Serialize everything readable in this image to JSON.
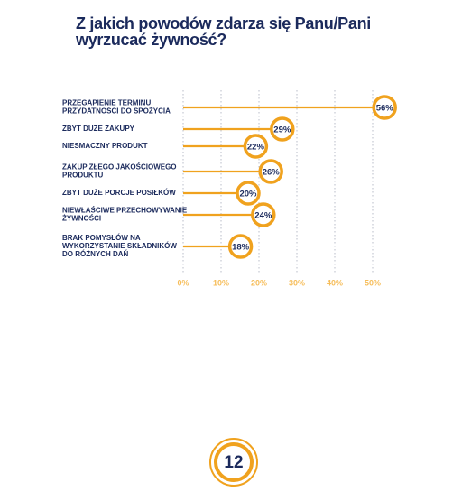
{
  "chart_data": {
    "type": "lollipop",
    "title": "Z jakich powodów zdarza się Panu/Pani wyrzucać żywność?",
    "categories": [
      [
        "PRZEGAPIENIE TERMINU",
        "PRZYDATNOŚCI DO SPOŻYCIA"
      ],
      [
        "ZBYT DUŻE ZAKUPY"
      ],
      [
        "NIESMACZNY PRODUKT"
      ],
      [
        "ZAKUP ZŁEGO JAKOŚCIOWEGO",
        "PRODUKTU"
      ],
      [
        "ZBYT DUŻE PORCJE POSIŁKÓW"
      ],
      [
        "NIEWŁAŚCIWE PRZECHOWYWANIE",
        "ŻYWNOŚCI"
      ],
      [
        "BRAK POMYSŁÓW NA",
        "WYKORZYSTANIE SKŁADNIKÓW",
        "DO RÓŻNYCH DAŃ"
      ]
    ],
    "values": [
      56,
      29,
      22,
      26,
      20,
      24,
      18
    ],
    "value_labels": [
      "56%",
      "29%",
      "22%",
      "26%",
      "20%",
      "24%",
      "18%"
    ],
    "color": "#f0a21e",
    "xlim": [
      0,
      50
    ],
    "xticks": [
      {
        "value": 0,
        "label": "0%"
      },
      {
        "value": 10,
        "label": "10%"
      },
      {
        "value": 20,
        "label": "20%"
      },
      {
        "value": 30,
        "label": "30%"
      },
      {
        "value": 40,
        "label": "40%"
      },
      {
        "value": 50,
        "label": "50%"
      }
    ],
    "grid": true
  },
  "page_number": "12"
}
